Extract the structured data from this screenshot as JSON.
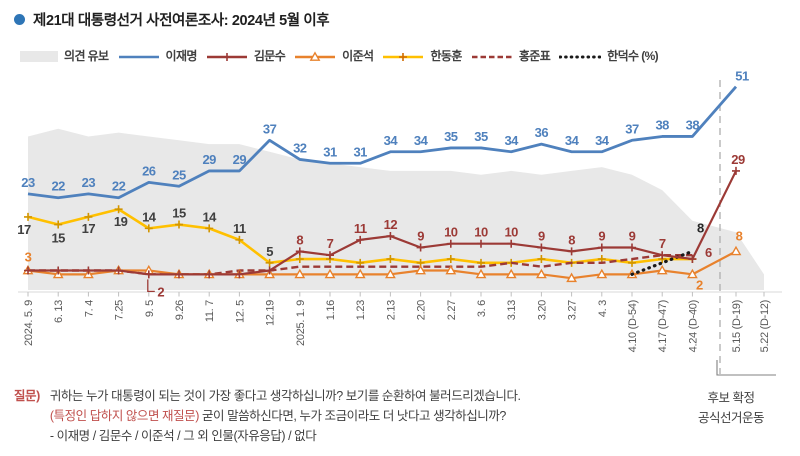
{
  "title": {
    "text": "제21대 대통령선거 사전여론조사: 2024년 5월 이후",
    "bullet_color": "#2e75b6"
  },
  "colors": {
    "undecided": "#e8e8e8",
    "lee_jae_myung": "#4f81bd",
    "kim_moon_soo": "#9c3a36",
    "lee_jun_seok": "#e8822d",
    "han_dong_hoon": "#ffc000",
    "hong_jun_pyo": "#9c3a36",
    "han_duck_soo": "#1a1a1a",
    "divider_line": "#b3b3b3",
    "axis_line": "#d9d9d9",
    "question_accent": "#c0504d"
  },
  "legend": [
    {
      "id": "undecided",
      "name": "의견 유보",
      "style": "area",
      "color": "#e8e8e8"
    },
    {
      "id": "lee-jae-myung",
      "name": "이재명",
      "style": "solid",
      "color": "#4f81bd",
      "marker": "none"
    },
    {
      "id": "kim-moon-soo",
      "name": "김문수",
      "style": "solid",
      "color": "#9c3a36",
      "marker": "plus"
    },
    {
      "id": "lee-jun-seok",
      "name": "이준석",
      "style": "solid",
      "color": "#e8822d",
      "marker": "triangle"
    },
    {
      "id": "han-dong-hoon",
      "name": "한동훈",
      "style": "solid",
      "color": "#ffc000",
      "marker": "plus",
      "marker_color": "#d06a00"
    },
    {
      "id": "hong-jun-pyo",
      "name": "홍준표",
      "style": "dashed",
      "color": "#9c3a36",
      "marker": "none"
    },
    {
      "id": "han-duck-soo",
      "name": "한덕수 (%)",
      "style": "dotted",
      "color": "#1a1a1a",
      "marker": "none"
    }
  ],
  "chart_data": {
    "type": "line",
    "unit": "%",
    "grid": false,
    "legend_position": "top",
    "ylim": [
      0,
      55
    ],
    "categories": [
      "2024. 5. 9",
      "6. 13",
      "7. 4",
      "7.25",
      "9. 5",
      "9.26",
      "11. 7",
      "12. 5",
      "12.19",
      "2025. 1. 9",
      "1.16",
      "1.23",
      "2.13",
      "2.20",
      "2.27",
      "3. 6",
      "3.13",
      "3.20",
      "3.27",
      "4. 3",
      "4.10 (D-54)",
      "4.17 (D-47)",
      "4.24 (D-40)",
      "5.15 (D-19)",
      "5.22 (D-12)"
    ],
    "series": [
      {
        "id": "undecided",
        "name": "의견 유보",
        "style": "area",
        "color": "#e8e8e8",
        "values": [
          38,
          40,
          38,
          39,
          38,
          37,
          36,
          36,
          34,
          32,
          31,
          30,
          29,
          29,
          29,
          28,
          29,
          28,
          29,
          30,
          28,
          24,
          16,
          13,
          2
        ],
        "labeled": []
      },
      {
        "id": "han-dong-hoon",
        "name": "한동훈",
        "style": "solid",
        "color": "#ffc000",
        "width": 2.6,
        "marker": "plus",
        "marker_color": "#d29500",
        "label_color": "#404040",
        "values": [
          17,
          15,
          17,
          19,
          14,
          15,
          14,
          11,
          5,
          6,
          6,
          5,
          6,
          5,
          6,
          5,
          5,
          6,
          5,
          6,
          5,
          6,
          6,
          null,
          null
        ],
        "labeled": [
          0,
          1,
          2,
          3,
          4,
          5,
          6,
          7,
          8
        ],
        "label_offsets": {
          "0": [
            -4,
            17
          ],
          "1": [
            0,
            18
          ],
          "2": [
            0,
            16
          ],
          "3": [
            2,
            17
          ]
        }
      },
      {
        "id": "hong-jun-pyo",
        "name": "홍준표",
        "style": "dashed",
        "color": "#9c3a36",
        "width": 2.4,
        "marker": "none",
        "values": [
          3,
          3,
          3,
          3,
          2,
          2,
          2,
          3,
          3,
          4,
          4,
          4,
          4,
          4,
          4,
          4,
          5,
          4,
          5,
          5,
          6,
          7,
          7,
          null,
          null
        ],
        "labeled": []
      },
      {
        "id": "lee-jun-seok",
        "name": "이준석",
        "style": "solid",
        "color": "#e8822d",
        "width": 2.2,
        "marker": "triangle",
        "label_color": "#e8822d",
        "values": [
          3,
          2,
          2,
          3,
          3,
          2,
          2,
          2,
          2,
          2,
          2,
          2,
          2,
          3,
          3,
          2,
          2,
          2,
          1,
          2,
          2,
          3,
          2,
          8,
          null
        ],
        "labeled": [
          0,
          22,
          23
        ],
        "label_offsets": {
          "0": [
            0,
            -9
          ],
          "22": [
            7,
            15
          ],
          "23": [
            3,
            -11
          ]
        }
      },
      {
        "id": "han-duck-soo",
        "name": "한덕수",
        "style": "dotted",
        "color": "#1a1a1a",
        "width": 3.2,
        "marker": "none",
        "label_color": "#262626",
        "values": [
          null,
          null,
          null,
          null,
          null,
          null,
          null,
          null,
          null,
          null,
          null,
          null,
          null,
          null,
          null,
          null,
          null,
          null,
          null,
          null,
          2,
          5,
          8,
          null,
          null
        ],
        "labeled": [
          22
        ],
        "label_offsets": {
          "22": [
            8,
            -19
          ]
        }
      },
      {
        "id": "kim-moon-soo",
        "name": "김문수",
        "style": "solid",
        "color": "#9c3a36",
        "width": 2.2,
        "marker": "plus",
        "label_color": "#9c3a36",
        "values": [
          3,
          3,
          3,
          3,
          2,
          2,
          2,
          2,
          3,
          8,
          7,
          11,
          12,
          9,
          10,
          10,
          10,
          9,
          8,
          9,
          9,
          7,
          6,
          29,
          null
        ],
        "labeled": [
          9,
          10,
          11,
          12,
          13,
          14,
          15,
          16,
          17,
          18,
          19,
          20,
          21,
          22,
          23
        ],
        "label_offsets": {
          "22": [
            16,
            -2
          ],
          "23": [
            2,
            -7
          ]
        },
        "callout": {
          "index": 4,
          "shape": "bracket"
        }
      },
      {
        "id": "lee-jae-myung",
        "name": "이재명",
        "style": "solid",
        "color": "#4f81bd",
        "width": 2.8,
        "marker": "none",
        "label_color": "#4f81bd",
        "values": [
          23,
          22,
          23,
          22,
          26,
          25,
          29,
          29,
          37,
          32,
          31,
          31,
          34,
          34,
          35,
          35,
          34,
          36,
          34,
          34,
          37,
          38,
          38,
          51,
          null
        ],
        "labeled": [
          0,
          1,
          2,
          3,
          4,
          5,
          6,
          7,
          8,
          9,
          10,
          11,
          12,
          13,
          14,
          15,
          16,
          17,
          18,
          19,
          20,
          21,
          22,
          23
        ],
        "label_offsets": {
          "23": [
            6,
            -6
          ]
        }
      }
    ],
    "divider": {
      "after_category": "4.24 (D-40)",
      "before_category": "5.15 (D-19)"
    }
  },
  "annotations": {
    "campaign_line1": "후보 확정",
    "campaign_line2": "공식선거운동"
  },
  "question": {
    "label": "질문)",
    "line1": "귀하는 누가 대통령이 되는 것이 가장 좋다고 생각하십니까? 보기를 순환하여 불러드리겠습니다.",
    "line2_red": "(특정인 답하지 않으면 재질문)",
    "line2_rest": " 굳이 말씀하신다면, 누가 조금이라도 더 낫다고 생각하십니까?",
    "line3": "- 이재명 / 김문수 / 이준석 / 그 외 인물(자유응답) / 없다"
  }
}
